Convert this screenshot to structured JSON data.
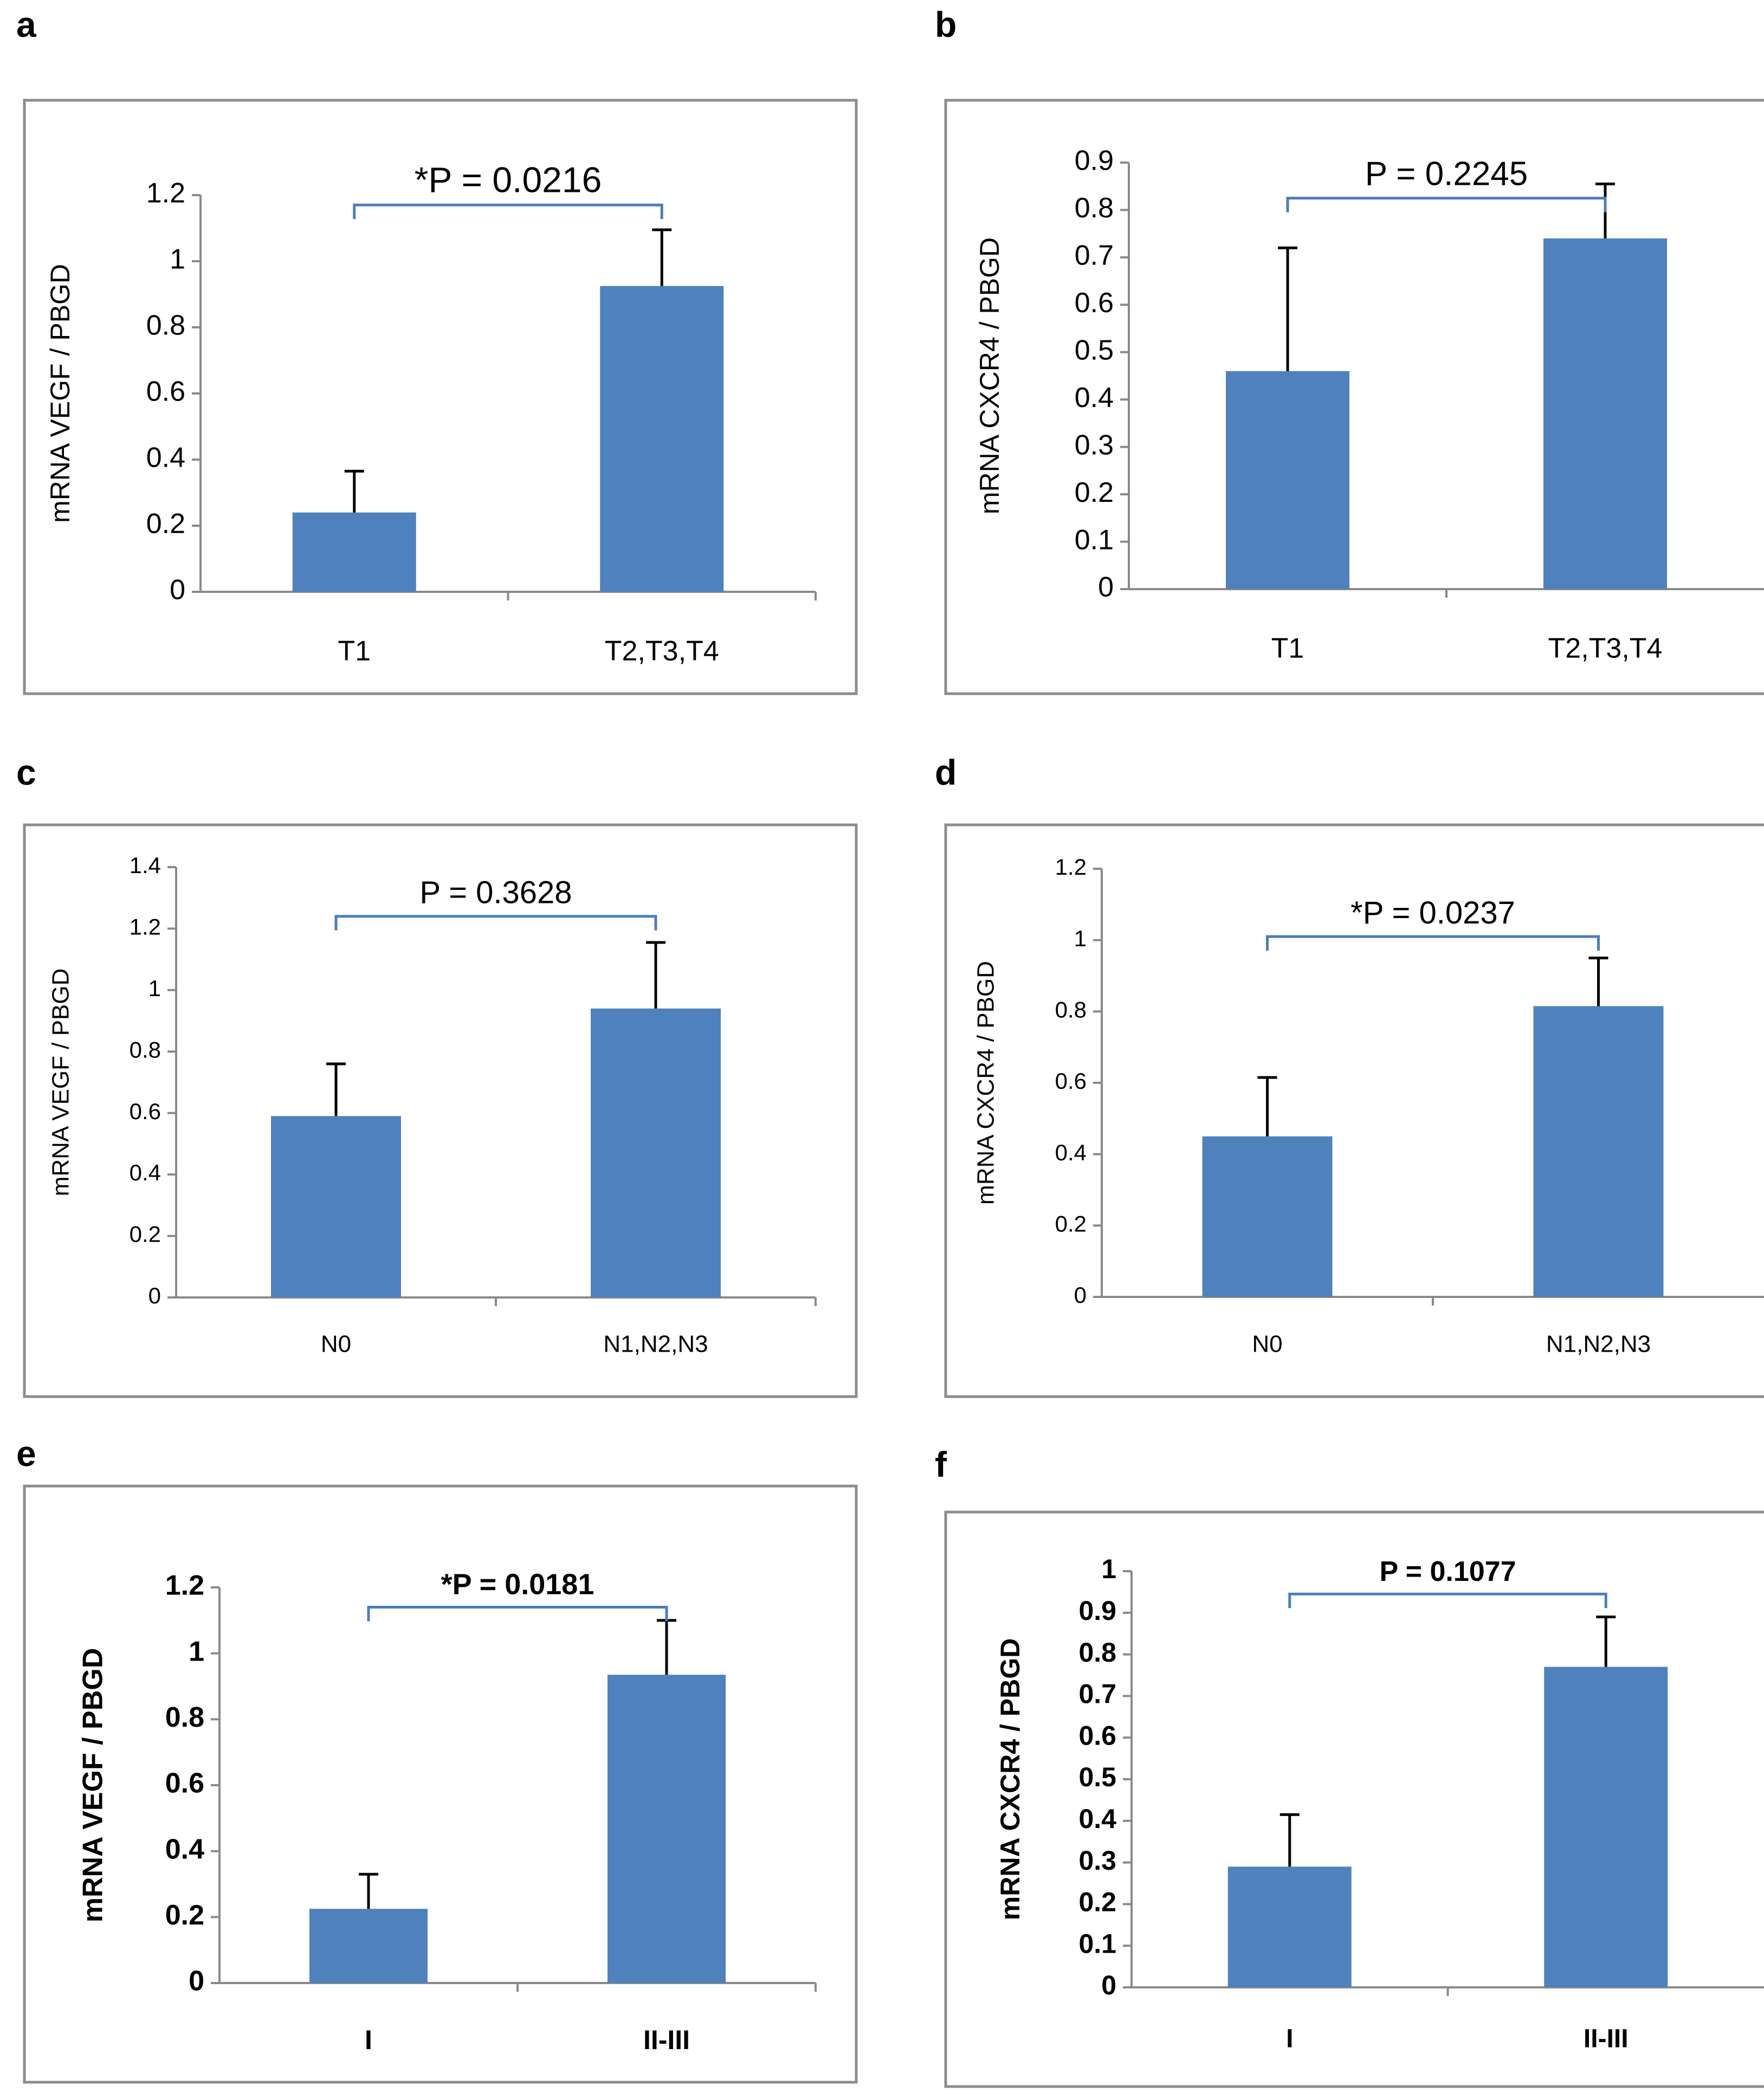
{
  "figure": {
    "colors": {
      "bar": "#4f81bd",
      "bracket": "#4a7ebb",
      "frame": "#8c8c8c",
      "axis": "#8a8a8a"
    }
  },
  "chart_data": [
    {
      "panel": "a",
      "type": "bar",
      "categories": [
        "T1",
        "T2,T3,T4"
      ],
      "values": [
        0.24,
        0.925
      ],
      "errors": [
        0.125,
        0.17
      ],
      "ylabel": "mRNA VEGF / PBGD",
      "ylim": [
        0,
        1.2
      ],
      "yticks": [
        "0",
        "0.2",
        "0.4",
        "0.6",
        "0.8",
        "1",
        "1.2"
      ],
      "annotation": "*P = 0.0216",
      "bracket_y": 1.17
    },
    {
      "panel": "b",
      "type": "bar",
      "categories": [
        "T1",
        "T2,T3,T4"
      ],
      "values": [
        0.46,
        0.74
      ],
      "errors": [
        0.26,
        0.115
      ],
      "ylabel": "mRNA CXCR4 / PBGD",
      "ylim": [
        0,
        0.9
      ],
      "yticks": [
        "0",
        "0.1",
        "0.2",
        "0.3",
        "0.4",
        "0.5",
        "0.6",
        "0.7",
        "0.8",
        "0.9"
      ],
      "annotation": "P = 0.2245",
      "bracket_y": 0.825
    },
    {
      "panel": "c",
      "type": "bar",
      "categories": [
        "N0",
        "N1,N2,N3"
      ],
      "values": [
        0.59,
        0.94
      ],
      "errors": [
        0.17,
        0.215
      ],
      "ylabel": "mRNA VEGF / PBGD",
      "ylim": [
        0,
        1.4
      ],
      "yticks": [
        "0",
        "0.2",
        "0.4",
        "0.6",
        "0.8",
        "1",
        "1.2",
        "1.4"
      ],
      "annotation": "P = 0.3628",
      "bracket_y": 1.24
    },
    {
      "panel": "d",
      "type": "bar",
      "categories": [
        "N0",
        "N1,N2,N3"
      ],
      "values": [
        0.45,
        0.815
      ],
      "errors": [
        0.165,
        0.135
      ],
      "ylabel": "mRNA CXCR4 / PBGD",
      "ylim": [
        0,
        1.2
      ],
      "yticks": [
        "0",
        "0.2",
        "0.4",
        "0.6",
        "0.8",
        "1",
        "1.2"
      ],
      "annotation": "*P = 0.0237",
      "bracket_y": 1.01
    },
    {
      "panel": "e",
      "type": "bar",
      "categories": [
        "I",
        "II-III"
      ],
      "values": [
        0.225,
        0.935
      ],
      "errors": [
        0.105,
        0.165
      ],
      "ylabel": "mRNA VEGF / PBGD",
      "ylim": [
        0,
        1.2
      ],
      "yticks": [
        "0",
        "0.2",
        "0.4",
        "0.6",
        "0.8",
        "1",
        "1.2"
      ],
      "annotation": "*P = 0.0181",
      "bracket_y": 1.14
    },
    {
      "panel": "f",
      "type": "bar",
      "categories": [
        "I",
        "II-III"
      ],
      "values": [
        0.29,
        0.77
      ],
      "errors": [
        0.125,
        0.12
      ],
      "ylabel": "mRNA CXCR4 / PBGD",
      "ylim": [
        0,
        1.0
      ],
      "yticks": [
        "0",
        "0.1",
        "0.2",
        "0.3",
        "0.4",
        "0.5",
        "0.6",
        "0.7",
        "0.8",
        "0.9",
        "1"
      ],
      "annotation": "P = 0.1077",
      "bracket_y": 0.945
    }
  ]
}
